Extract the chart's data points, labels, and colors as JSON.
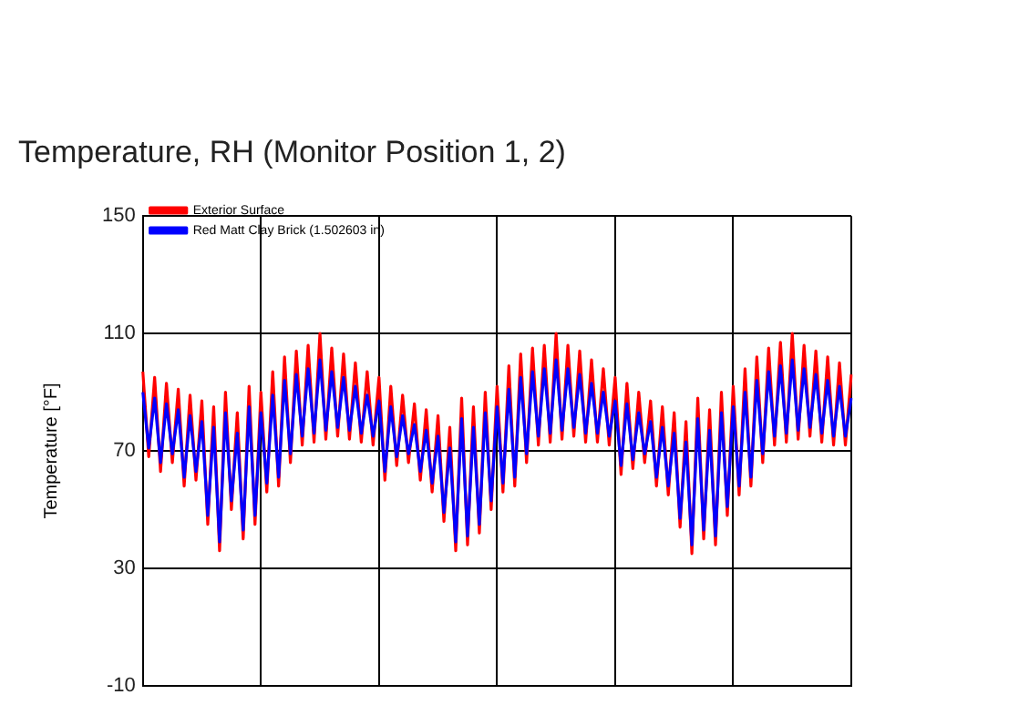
{
  "chart_data": {
    "type": "line",
    "title": "Temperature, RH (Monitor Position 1, 2)",
    "ylabel": "Temperature [°F]",
    "categories": [
      null,
      null,
      null,
      null,
      null,
      null,
      null,
      null,
      null,
      null,
      null,
      null,
      null,
      null,
      null,
      null,
      null,
      null,
      null,
      null,
      null,
      null,
      null,
      null,
      null,
      null,
      null,
      null,
      null,
      null,
      null,
      null,
      null,
      null,
      null,
      null,
      null,
      null,
      null,
      null,
      null,
      null,
      null,
      null,
      null,
      null,
      null,
      null,
      null,
      null,
      null,
      null,
      null,
      null,
      null,
      null,
      null,
      null,
      null,
      null,
      null,
      null,
      null,
      null,
      null,
      null,
      null,
      null,
      null,
      null,
      null,
      null,
      null,
      null,
      null,
      null,
      null,
      null,
      null,
      null,
      null,
      null,
      null,
      null,
      null,
      null,
      null,
      null,
      null,
      null,
      null,
      null,
      null,
      null,
      null,
      null,
      null,
      null,
      null,
      null,
      null,
      null,
      null,
      null,
      null,
      null,
      null,
      null,
      null,
      null,
      null,
      null,
      null,
      null,
      null,
      null,
      null,
      null,
      null,
      null,
      null
    ],
    "series": [
      {
        "name": "Exterior Surface",
        "color": "#ff0000",
        "values": [
          97,
          68,
          95,
          63,
          93,
          66,
          91,
          58,
          89,
          60,
          87,
          45,
          85,
          36,
          90,
          50,
          83,
          40,
          92,
          45,
          90,
          56,
          97,
          58,
          102,
          66,
          104,
          72,
          106,
          73,
          110,
          74,
          105,
          75,
          103,
          74,
          100,
          73,
          97,
          72,
          95,
          60,
          92,
          65,
          89,
          66,
          86,
          60,
          84,
          56,
          82,
          46,
          78,
          36,
          88,
          38,
          85,
          42,
          90,
          50,
          92,
          56,
          99,
          58,
          103,
          66,
          105,
          72,
          106,
          73,
          110,
          74,
          106,
          75,
          104,
          73,
          101,
          73,
          98,
          72,
          95,
          62,
          93,
          64,
          90,
          66,
          87,
          58,
          85,
          55,
          83,
          44,
          80,
          35,
          88,
          40,
          84,
          38,
          90,
          48,
          92,
          55,
          98,
          58,
          102,
          66,
          105,
          72,
          107,
          73,
          110,
          74,
          106,
          75,
          104,
          73,
          102,
          72,
          100,
          72,
          96
        ]
      },
      {
        "name": "Red Matt Clay Brick (1.502603 in)",
        "color": "#0000ff",
        "values": [
          90,
          71,
          88,
          66,
          86,
          69,
          84,
          61,
          82,
          63,
          80,
          48,
          78,
          39,
          83,
          53,
          76,
          43,
          85,
          48,
          83,
          59,
          89,
          61,
          94,
          69,
          96,
          75,
          98,
          76,
          101,
          77,
          97,
          78,
          95,
          77,
          92,
          76,
          89,
          75,
          87,
          63,
          85,
          68,
          82,
          69,
          79,
          63,
          77,
          59,
          75,
          49,
          71,
          39,
          81,
          41,
          78,
          45,
          83,
          53,
          85,
          59,
          91,
          61,
          95,
          69,
          97,
          75,
          98,
          76,
          101,
          77,
          98,
          78,
          96,
          76,
          93,
          76,
          90,
          75,
          87,
          65,
          86,
          67,
          83,
          69,
          80,
          61,
          78,
          58,
          76,
          47,
          73,
          38,
          81,
          43,
          77,
          41,
          83,
          51,
          85,
          58,
          90,
          61,
          94,
          69,
          97,
          75,
          99,
          76,
          101,
          77,
          98,
          78,
          96,
          76,
          94,
          75,
          92,
          75,
          88
        ]
      }
    ],
    "ylim": [
      -10,
      150
    ],
    "yticks": [
      -10,
      30,
      70,
      110,
      150
    ],
    "grid": true,
    "legend": "top left",
    "tick_labels": "y"
  }
}
